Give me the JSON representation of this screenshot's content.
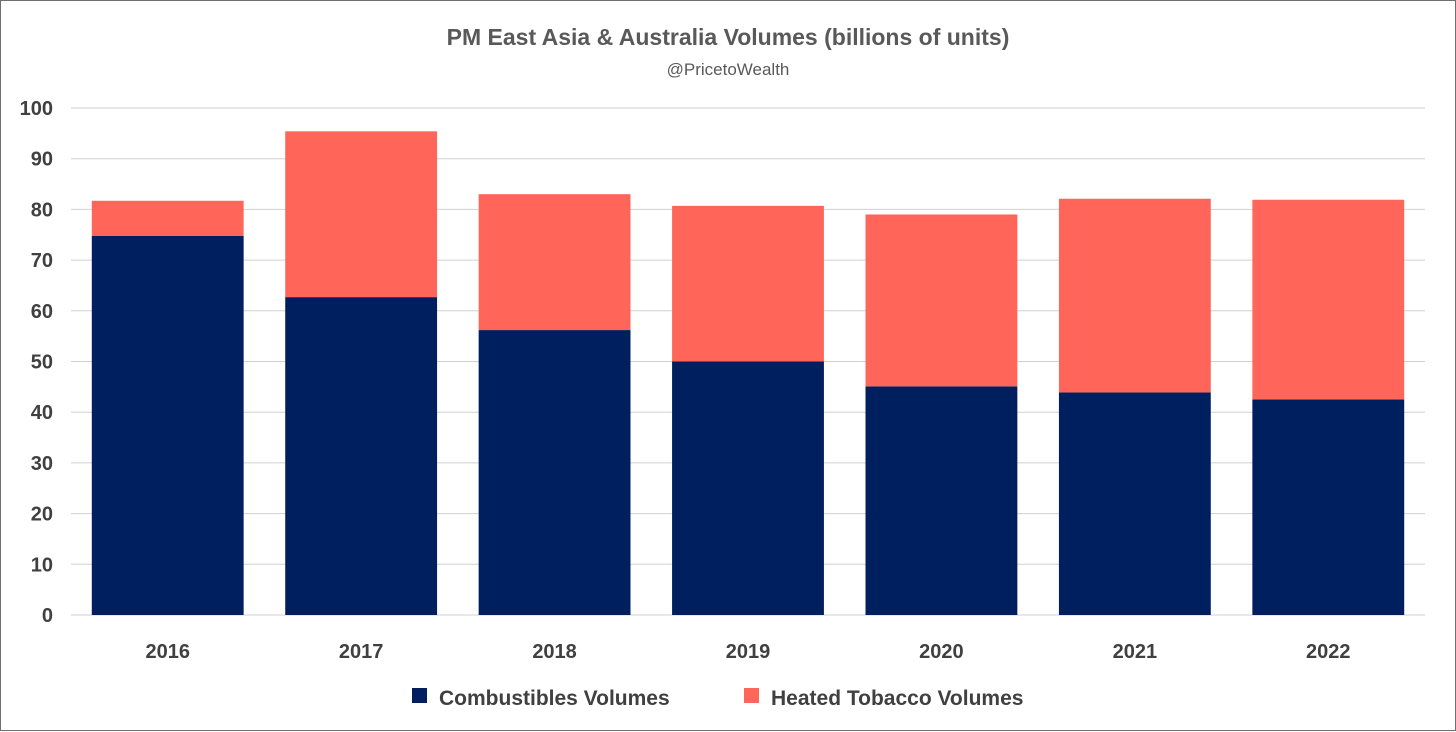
{
  "chart_data": {
    "type": "bar",
    "stacked": true,
    "title": "PM East Asia & Australia Volumes (billions of units)",
    "subtitle": "@PricetoWealth",
    "categories": [
      "2016",
      "2017",
      "2018",
      "2019",
      "2020",
      "2021",
      "2022"
    ],
    "series": [
      {
        "name": "Combustibles Volumes",
        "color": "#001f5f",
        "values": [
          74.8,
          62.7,
          56.2,
          50.0,
          45.1,
          43.9,
          42.5
        ]
      },
      {
        "name": "Heated Tobacco Volumes",
        "color": "#ff6659",
        "values": [
          6.9,
          32.7,
          26.8,
          30.7,
          33.9,
          38.2,
          39.4
        ]
      }
    ],
    "ylim": [
      0,
      100
    ],
    "yticks": [
      "0",
      "10",
      "20",
      "30",
      "40",
      "50",
      "60",
      "70",
      "80",
      "90",
      "100"
    ],
    "grid": true,
    "legend_position": "bottom",
    "xlabel": "",
    "ylabel": ""
  }
}
